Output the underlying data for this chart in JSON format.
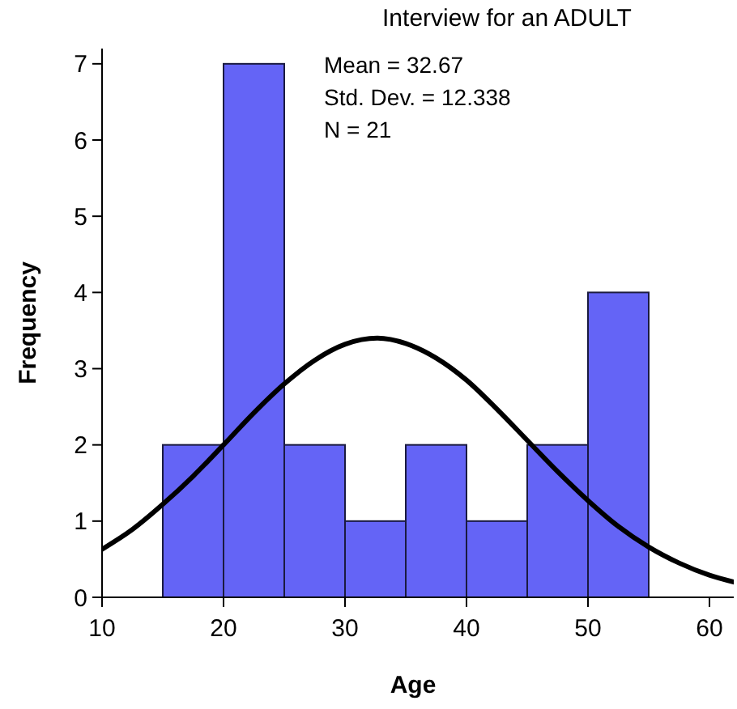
{
  "chart_data": {
    "type": "histogram",
    "title": "Interview for an ADULT",
    "xlabel": "Age",
    "ylabel": "Frequency",
    "annotations": [
      "Mean = 32.67",
      "Std. Dev. = 12.338",
      "N = 21"
    ],
    "bins": [
      15,
      20,
      25,
      30,
      35,
      40,
      45,
      50,
      55
    ],
    "xlim": [
      10,
      62
    ],
    "xticks": [
      10,
      20,
      30,
      40,
      50,
      60
    ],
    "ylim": [
      0,
      7.2
    ],
    "yticks": [
      0,
      1,
      2,
      3,
      4,
      5,
      6,
      7
    ],
    "series": [
      {
        "color": "#6464f6",
        "values": [
          2,
          7,
          2,
          1,
          2,
          1,
          2,
          4
        ]
      },
      {
        "type": "line",
        "color": "#000000",
        "x": [
          10,
          12.5,
          15,
          17.5,
          20,
          22.5,
          25,
          27.5,
          30,
          32.67,
          35,
          37.5,
          40,
          42.5,
          45,
          47.5,
          50,
          52.5,
          55,
          57.5,
          60,
          62
        ],
        "values": [
          0.63,
          0.89,
          1.22,
          1.59,
          2.0,
          2.42,
          2.8,
          3.11,
          3.32,
          3.4,
          3.33,
          3.14,
          2.85,
          2.47,
          2.06,
          1.65,
          1.27,
          0.93,
          0.66,
          0.45,
          0.29,
          0.2
        ]
      }
    ]
  }
}
